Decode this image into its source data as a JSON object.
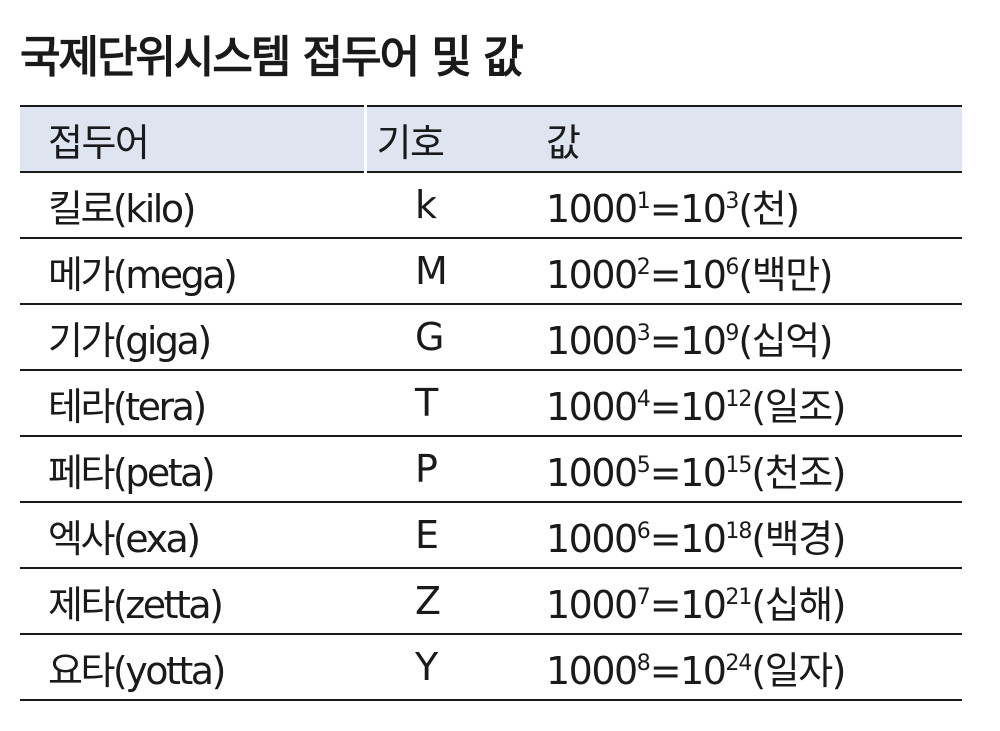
{
  "title": "국제단위시스템 접두어 및 값",
  "table": {
    "headers": [
      "접두어",
      "기호",
      "값"
    ],
    "equals": "=",
    "rows": [
      {
        "prefix": "킬로(kilo)",
        "symbol": "k",
        "base": "1000",
        "base_exp": "1",
        "pow_base": "10",
        "pow_exp": "3",
        "korean": "(천)"
      },
      {
        "prefix": "메가(mega)",
        "symbol": "M",
        "base": "1000",
        "base_exp": "2",
        "pow_base": "10",
        "pow_exp": "6",
        "korean": "(백만)"
      },
      {
        "prefix": "기가(giga)",
        "symbol": "G",
        "base": "1000",
        "base_exp": "3",
        "pow_base": "10",
        "pow_exp": "9",
        "korean": "(십억)"
      },
      {
        "prefix": "테라(tera)",
        "symbol": "T",
        "base": "1000",
        "base_exp": "4",
        "pow_base": "10",
        "pow_exp": "12",
        "korean": "(일조)"
      },
      {
        "prefix": "페타(peta)",
        "symbol": "P",
        "base": "1000",
        "base_exp": "5",
        "pow_base": "10",
        "pow_exp": "15",
        "korean": "(천조)"
      },
      {
        "prefix": "엑사(exa)",
        "symbol": "E",
        "base": "1000",
        "base_exp": "6",
        "pow_base": "10",
        "pow_exp": "18",
        "korean": "(백경)"
      },
      {
        "prefix": "제타(zetta)",
        "symbol": "Z",
        "base": "1000",
        "base_exp": "7",
        "pow_base": "10",
        "pow_exp": "21",
        "korean": "(십해)"
      },
      {
        "prefix": "요타(yotta)",
        "symbol": "Y",
        "base": "1000",
        "base_exp": "8",
        "pow_base": "10",
        "pow_exp": "24",
        "korean": "(일자)"
      }
    ]
  },
  "colors": {
    "header_bg": "#dfe4f1",
    "rule": "#1a1a1a",
    "text": "#1a1a1a"
  }
}
